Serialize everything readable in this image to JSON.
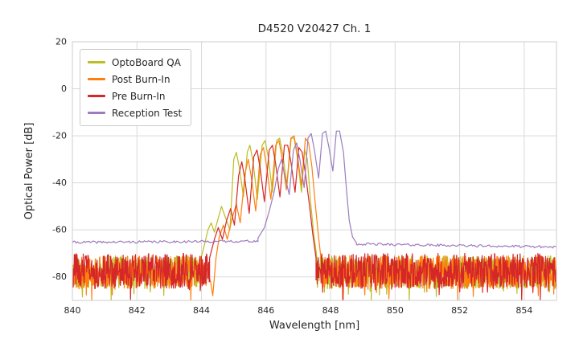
{
  "chart_data": {
    "type": "line",
    "title": "D4520 V20427 Ch. 1",
    "xlabel": "Wavelength [nm]",
    "ylabel": "Optical Power [dB]",
    "xlim": [
      840,
      855
    ],
    "ylim": [
      -90,
      20
    ],
    "xticks": [
      840,
      842,
      844,
      846,
      848,
      850,
      852,
      854
    ],
    "yticks": [
      20,
      0,
      -20,
      -40,
      -60,
      -80
    ],
    "grid": true,
    "legend_position": "upper left",
    "background": "#ffffff",
    "grid_color": "#d9d9d9",
    "spine_color": "#cccccc",
    "text_color": "#262626",
    "series": [
      {
        "name": "OptoBoard QA",
        "color": "#bcbd22",
        "segments": [
          {
            "type": "noise",
            "x0": 840.0,
            "x1": 843.95,
            "dx": 0.012,
            "mean0": -78,
            "mean1": -78,
            "amp": 7,
            "spike_p": 0.05,
            "spike_amp": 8,
            "seed": 11
          },
          {
            "type": "points",
            "data": [
              [
                843.95,
                -74
              ],
              [
                844.1,
                -66
              ],
              [
                844.2,
                -60
              ],
              [
                844.3,
                -57
              ],
              [
                844.4,
                -61
              ],
              [
                844.5,
                -56
              ],
              [
                844.62,
                -50
              ],
              [
                844.75,
                -55
              ],
              [
                844.88,
                -60
              ],
              [
                845.0,
                -30
              ],
              [
                845.08,
                -27
              ],
              [
                845.18,
                -34
              ],
              [
                845.3,
                -46
              ],
              [
                845.42,
                -27
              ],
              [
                845.5,
                -24
              ],
              [
                845.6,
                -31
              ],
              [
                845.73,
                -47
              ],
              [
                845.88,
                -24
              ],
              [
                845.97,
                -22
              ],
              [
                846.07,
                -29
              ],
              [
                846.2,
                -44
              ],
              [
                846.33,
                -22
              ],
              [
                846.42,
                -21
              ],
              [
                846.52,
                -28
              ],
              [
                846.65,
                -41
              ],
              [
                846.78,
                -21
              ],
              [
                846.87,
                -21
              ],
              [
                846.97,
                -29
              ],
              [
                847.1,
                -44
              ],
              [
                847.2,
                -26
              ],
              [
                847.28,
                -30
              ],
              [
                847.38,
                -48
              ],
              [
                847.48,
                -62
              ],
              [
                847.58,
                -72
              ]
            ]
          },
          {
            "type": "noise",
            "x0": 847.58,
            "x1": 855.0,
            "dx": 0.012,
            "mean0": -78,
            "mean1": -78,
            "amp": 7,
            "spike_p": 0.05,
            "spike_amp": 8,
            "seed": 12
          }
        ]
      },
      {
        "name": "Post Burn-In",
        "color": "#ff7f0e",
        "segments": [
          {
            "type": "noise",
            "x0": 840.0,
            "x1": 844.15,
            "dx": 0.012,
            "mean0": -78,
            "mean1": -78,
            "amp": 7,
            "spike_p": 0.05,
            "spike_amp": 8,
            "seed": 21
          },
          {
            "type": "points",
            "data": [
              [
                844.15,
                -76
              ],
              [
                844.28,
                -82
              ],
              [
                844.35,
                -88
              ],
              [
                844.45,
                -72
              ],
              [
                844.55,
                -63
              ],
              [
                844.68,
                -58
              ],
              [
                844.8,
                -64
              ],
              [
                844.95,
                -55
              ],
              [
                845.08,
                -49
              ],
              [
                845.2,
                -57
              ],
              [
                845.35,
                -36
              ],
              [
                845.45,
                -30
              ],
              [
                845.55,
                -38
              ],
              [
                845.68,
                -52
              ],
              [
                845.82,
                -28
              ],
              [
                845.92,
                -25
              ],
              [
                846.02,
                -33
              ],
              [
                846.15,
                -47
              ],
              [
                846.3,
                -24
              ],
              [
                846.4,
                -22
              ],
              [
                846.5,
                -30
              ],
              [
                846.63,
                -43
              ],
              [
                846.77,
                -21
              ],
              [
                846.87,
                -20
              ],
              [
                846.97,
                -28
              ],
              [
                847.1,
                -41
              ],
              [
                847.22,
                -21
              ],
              [
                847.32,
                -23
              ],
              [
                847.42,
                -33
              ],
              [
                847.52,
                -48
              ],
              [
                847.62,
                -62
              ],
              [
                847.72,
                -74
              ]
            ]
          },
          {
            "type": "noise",
            "x0": 847.72,
            "x1": 855.0,
            "dx": 0.012,
            "mean0": -78,
            "mean1": -78,
            "amp": 7,
            "spike_p": 0.05,
            "spike_amp": 8,
            "seed": 22
          }
        ]
      },
      {
        "name": "Pre Burn-In",
        "color": "#d62728",
        "segments": [
          {
            "type": "noise",
            "x0": 840.0,
            "x1": 844.25,
            "dx": 0.012,
            "mean0": -77.5,
            "mean1": -77.5,
            "amp": 7.5,
            "spike_p": 0.06,
            "spike_amp": 8,
            "seed": 31
          },
          {
            "type": "points",
            "data": [
              [
                844.25,
                -72
              ],
              [
                844.4,
                -64
              ],
              [
                844.52,
                -59
              ],
              [
                844.65,
                -64
              ],
              [
                844.78,
                -56
              ],
              [
                844.9,
                -51
              ],
              [
                845.02,
                -58
              ],
              [
                845.15,
                -37
              ],
              [
                845.25,
                -31
              ],
              [
                845.35,
                -39
              ],
              [
                845.48,
                -53
              ],
              [
                845.62,
                -29
              ],
              [
                845.72,
                -26
              ],
              [
                845.82,
                -34
              ],
              [
                845.95,
                -48
              ],
              [
                846.1,
                -26
              ],
              [
                846.2,
                -24
              ],
              [
                846.3,
                -32
              ],
              [
                846.43,
                -46
              ],
              [
                846.57,
                -24
              ],
              [
                846.67,
                -24
              ],
              [
                846.77,
                -31
              ],
              [
                846.9,
                -44
              ],
              [
                847.02,
                -25
              ],
              [
                847.12,
                -27
              ],
              [
                847.22,
                -36
              ],
              [
                847.35,
                -50
              ],
              [
                847.45,
                -62
              ],
              [
                847.55,
                -72
              ]
            ]
          },
          {
            "type": "noise",
            "x0": 847.55,
            "x1": 855.0,
            "dx": 0.012,
            "mean0": -77.5,
            "mean1": -77.5,
            "amp": 7.5,
            "spike_p": 0.06,
            "spike_amp": 8,
            "seed": 32
          }
        ]
      },
      {
        "name": "Reception Test",
        "color": "#9d7bbf",
        "segments": [
          {
            "type": "noise",
            "x0": 840.0,
            "x1": 845.75,
            "dx": 0.04,
            "mean0": -65.3,
            "mean1": -64.8,
            "amp": 0.5,
            "spike_p": 0,
            "spike_amp": 0,
            "seed": 41
          },
          {
            "type": "points",
            "data": [
              [
                845.75,
                -63.5
              ],
              [
                845.95,
                -59
              ],
              [
                846.1,
                -52
              ],
              [
                846.25,
                -44
              ],
              [
                846.38,
                -34
              ],
              [
                846.48,
                -30
              ],
              [
                846.58,
                -37
              ],
              [
                846.72,
                -45
              ],
              [
                846.85,
                -26
              ],
              [
                846.95,
                -23
              ],
              [
                847.05,
                -30
              ],
              [
                847.18,
                -42
              ],
              [
                847.3,
                -21
              ],
              [
                847.4,
                -19
              ],
              [
                847.5,
                -26
              ],
              [
                847.63,
                -38
              ],
              [
                847.75,
                -19
              ],
              [
                847.85,
                -18
              ],
              [
                847.95,
                -25
              ],
              [
                848.07,
                -35
              ],
              [
                848.18,
                -18
              ],
              [
                848.28,
                -18
              ],
              [
                848.4,
                -27
              ],
              [
                848.5,
                -44
              ],
              [
                848.58,
                -56
              ],
              [
                848.68,
                -63
              ],
              [
                848.8,
                -65.5
              ]
            ]
          },
          {
            "type": "noise",
            "x0": 848.8,
            "x1": 855.0,
            "dx": 0.04,
            "mean0": -66,
            "mean1": -67.3,
            "amp": 0.5,
            "spike_p": 0,
            "spike_amp": 0,
            "seed": 42
          }
        ]
      }
    ]
  }
}
